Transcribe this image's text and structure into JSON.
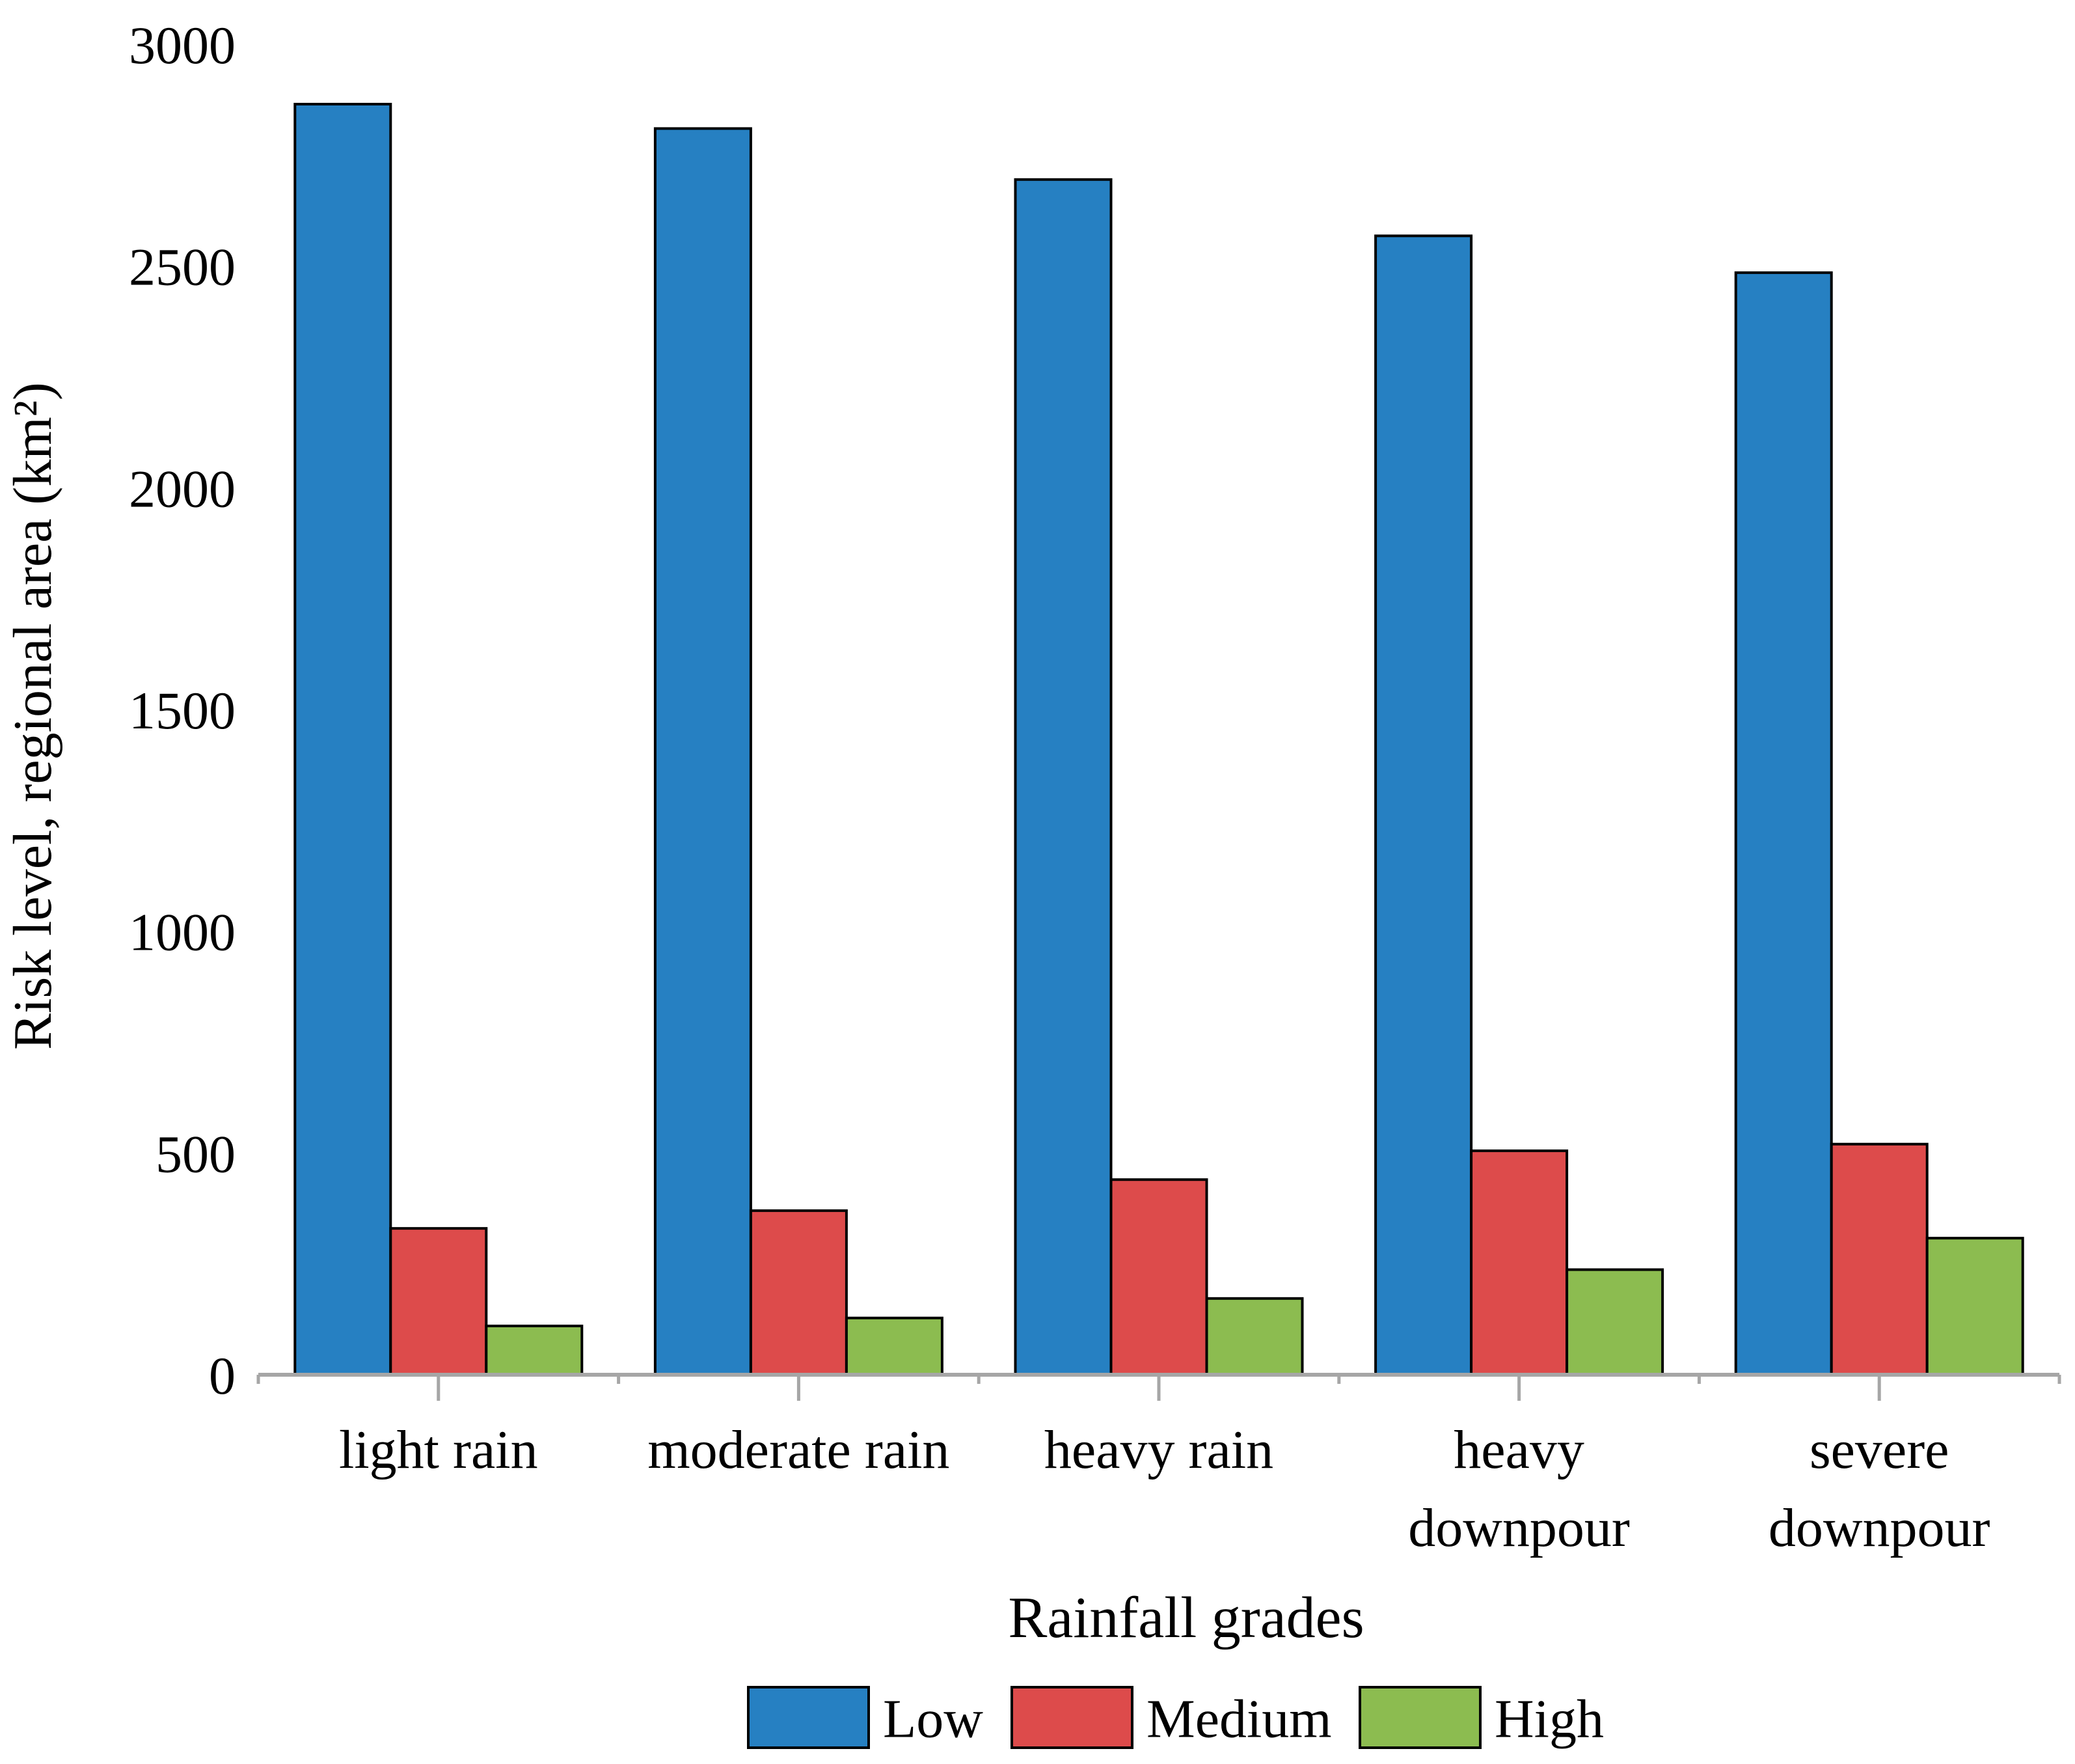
{
  "chart_data": {
    "type": "bar",
    "title": "",
    "xlabel": "Rainfall grades",
    "ylabel": "Risk level, regional area (km²)",
    "ylim": [
      0,
      3000
    ],
    "yticks": [
      0,
      500,
      1000,
      1500,
      2000,
      2500,
      3000
    ],
    "grid": false,
    "legend_position": "bottom-center",
    "categories": [
      [
        "light rain"
      ],
      [
        "moderate rain"
      ],
      [
        "heavy rain"
      ],
      [
        "heavy",
        "downpour"
      ],
      [
        "severe",
        "downpour"
      ]
    ],
    "series": [
      {
        "name": "Low",
        "color": "#2680c2",
        "values": [
          2865,
          2810,
          2695,
          2568,
          2485
        ]
      },
      {
        "name": "Medium",
        "color": "#dd4b4b",
        "values": [
          330,
          370,
          440,
          505,
          520
        ]
      },
      {
        "name": "High",
        "color": "#8cbc50",
        "values": [
          110,
          128,
          172,
          237,
          308
        ]
      }
    ]
  }
}
